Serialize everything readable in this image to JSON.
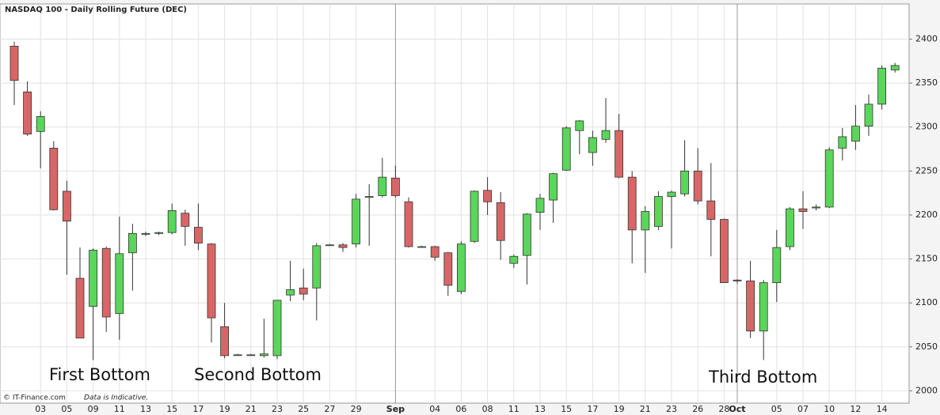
{
  "chart_data": {
    "type": "candlestick",
    "title": "NASDAQ 100 - Daily Rolling Future (DEC)",
    "annotations": [
      "First Bottom",
      "Second Bottom",
      "Third Bottom"
    ],
    "footer": [
      "© IT-Finance.com",
      "Data is Indicative."
    ],
    "categories": [
      null,
      null,
      "03",
      null,
      "05",
      null,
      "09",
      null,
      "11",
      null,
      "13",
      null,
      "15",
      null,
      "17",
      null,
      "19",
      null,
      "21",
      null,
      "23",
      null,
      "25",
      null,
      "27",
      null,
      "29",
      null,
      null,
      "Sep",
      null,
      null,
      "04",
      null,
      "06",
      null,
      "08",
      null,
      "11",
      null,
      "13",
      null,
      "15",
      null,
      "17",
      null,
      "19",
      null,
      "21",
      null,
      "23",
      null,
      "26",
      null,
      "28",
      "Oct",
      null,
      null,
      "05",
      null,
      "07",
      null,
      "10",
      null,
      "12",
      null,
      "14",
      null
    ],
    "open": [
      2392,
      2340,
      2295,
      2276,
      2227,
      2128,
      2096,
      2162,
      2088,
      2157,
      2178,
      2179,
      2180,
      2202,
      2186,
      2167,
      2073,
      2041,
      2041,
      2040,
      2040,
      2109,
      2117,
      2117,
      2166,
      2166,
      2167,
      2220,
      2222,
      2242,
      2215,
      2164,
      2164,
      2157,
      2113,
      2170,
      2228,
      2214,
      2145,
      2154,
      2203,
      2217,
      2251,
      2296,
      2271,
      2286,
      2296,
      2243,
      2183,
      2187,
      2221,
      2224,
      2250,
      2216,
      2195,
      2126,
      2125,
      2068,
      2123,
      2164,
      2207,
      2208,
      2209,
      2276,
      2284,
      2301,
      2326,
      2365
    ],
    "high": [
      2397,
      2352,
      2318,
      2284,
      2239,
      2163,
      2162,
      2164,
      2198,
      2190,
      2181,
      2181,
      2213,
      2206,
      2213,
      2168,
      2100,
      2042,
      2042,
      2082,
      2103,
      2148,
      2139,
      2168,
      2167,
      2168,
      2224,
      2235,
      2265,
      2256,
      2220,
      2165,
      2165,
      2158,
      2170,
      2228,
      2243,
      2226,
      2155,
      2202,
      2224,
      2248,
      2301,
      2308,
      2296,
      2333,
      2315,
      2250,
      2210,
      2227,
      2228,
      2285,
      2276,
      2259,
      2196,
      2127,
      2148,
      2126,
      2183,
      2209,
      2227,
      2212,
      2277,
      2299,
      2325,
      2337,
      2370,
      2373
    ],
    "low": [
      2325,
      2290,
      2253,
      2205,
      2132,
      2060,
      2035,
      2067,
      2058,
      2114,
      2176,
      2177,
      2178,
      2165,
      2160,
      2055,
      2037,
      2040,
      2040,
      2038,
      2036,
      2102,
      2103,
      2080,
      2165,
      2158,
      2163,
      2165,
      2220,
      2220,
      2163,
      2163,
      2148,
      2108,
      2110,
      2168,
      2200,
      2149,
      2140,
      2121,
      2183,
      2191,
      2250,
      2269,
      2256,
      2282,
      2242,
      2145,
      2134,
      2183,
      2162,
      2221,
      2212,
      2153,
      2123,
      2122,
      2060,
      2035,
      2101,
      2160,
      2184,
      2205,
      2208,
      2262,
      2274,
      2290,
      2320,
      2362
    ],
    "close": [
      2353,
      2292,
      2312,
      2206,
      2193,
      2060,
      2160,
      2084,
      2156,
      2179,
      2179,
      2180,
      2205,
      2187,
      2168,
      2083,
      2040,
      2041,
      2041,
      2042,
      2103,
      2115,
      2110,
      2165,
      2166,
      2163,
      2218,
      2221,
      2243,
      2222,
      2164,
      2164,
      2152,
      2120,
      2167,
      2227,
      2215,
      2171,
      2153,
      2201,
      2219,
      2247,
      2299,
      2307,
      2288,
      2296,
      2243,
      2183,
      2204,
      2221,
      2226,
      2250,
      2216,
      2195,
      2123,
      2125,
      2068,
      2123,
      2163,
      2207,
      2204,
      2209,
      2274,
      2289,
      2301,
      2326,
      2367,
      2370
    ],
    "up_color": "#5ad65a",
    "down_color": "#d86666",
    "ylim": [
      1986,
      2440
    ],
    "yticks": [
      2000,
      2050,
      2100,
      2150,
      2200,
      2250,
      2300,
      2350,
      2400
    ],
    "grid": true
  }
}
